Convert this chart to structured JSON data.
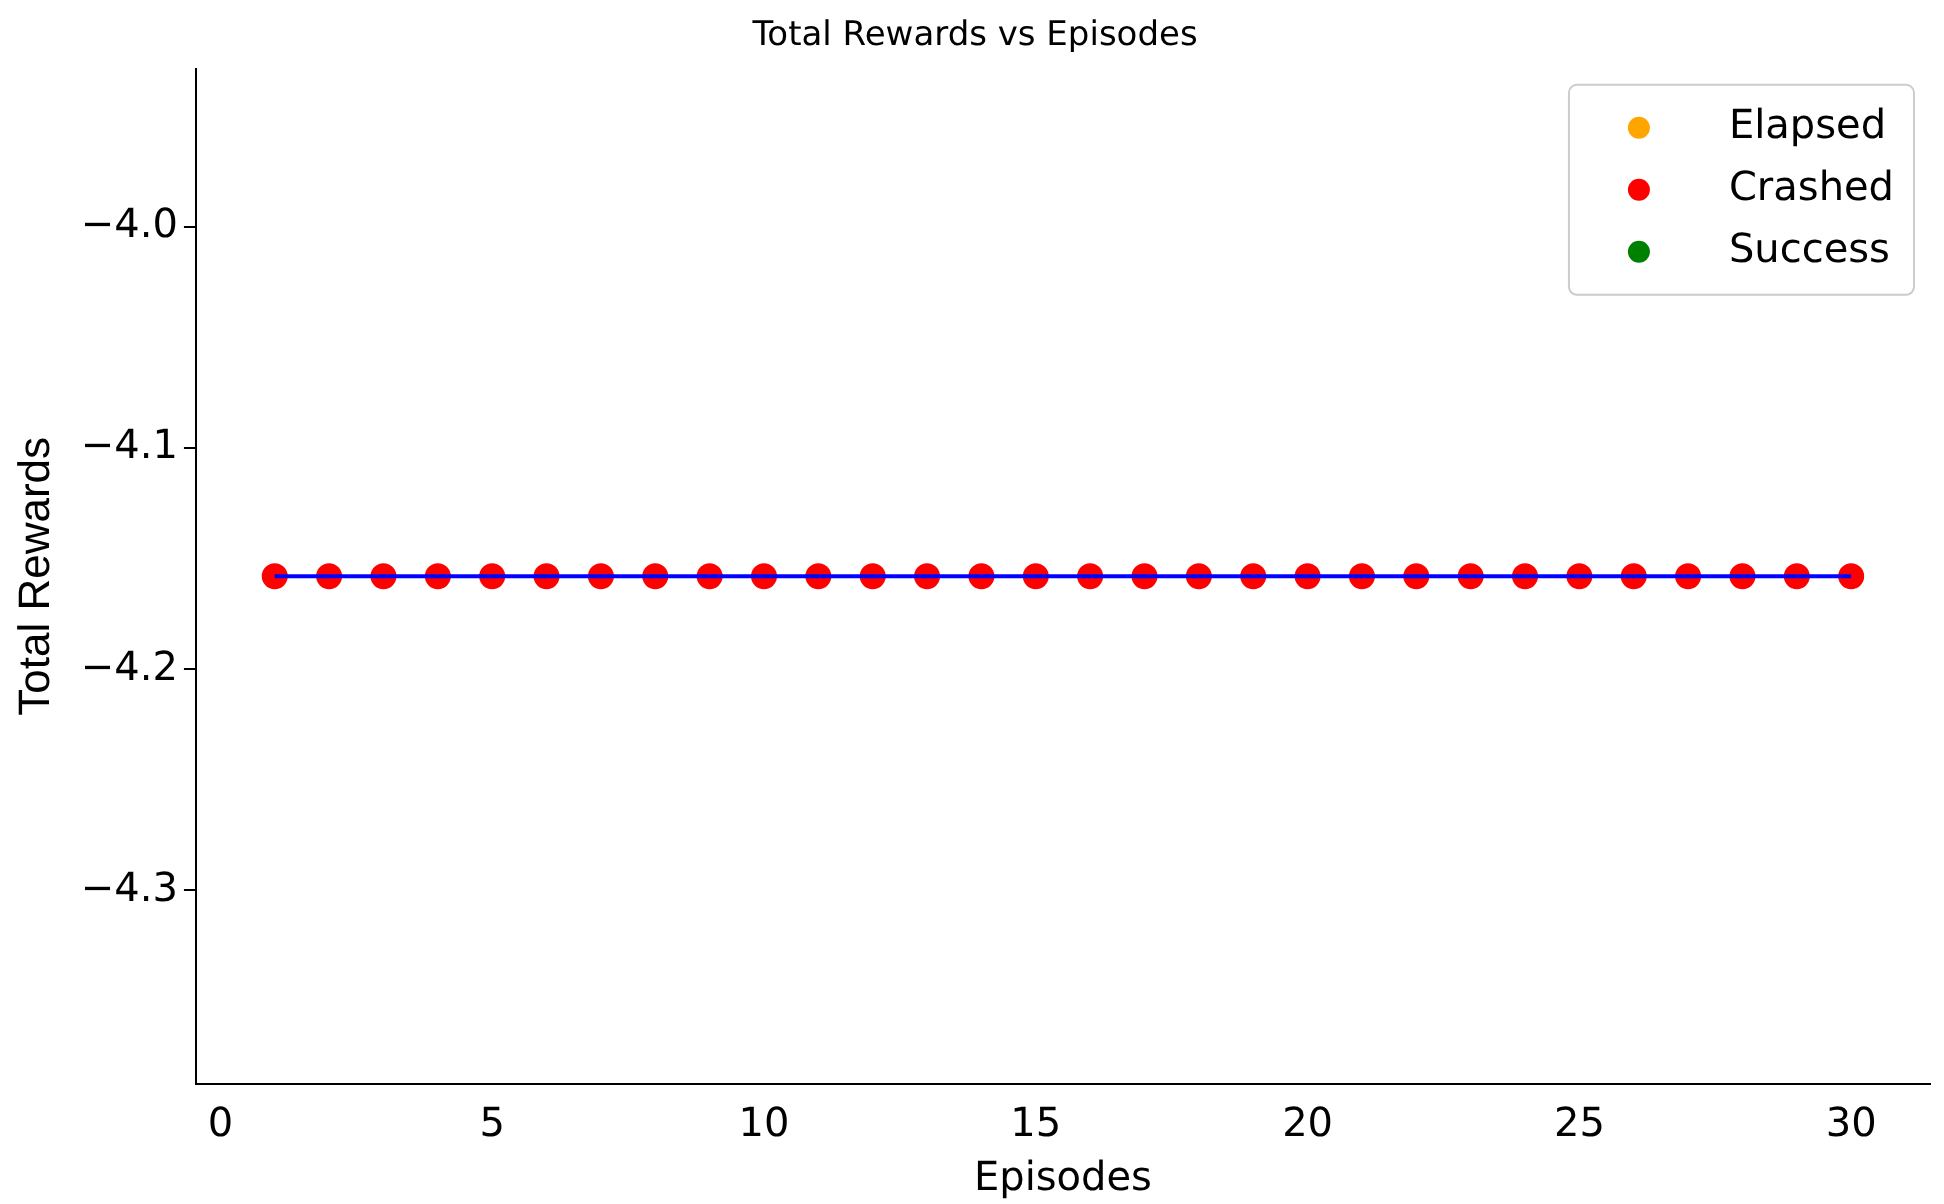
{
  "chart_data": {
    "type": "scatter",
    "title": "Total Rewards vs Episodes",
    "xlabel": "Episodes",
    "ylabel": "Total Rewards",
    "x": [
      1,
      2,
      3,
      4,
      5,
      6,
      7,
      8,
      9,
      10,
      11,
      12,
      13,
      14,
      15,
      16,
      17,
      18,
      19,
      20,
      21,
      22,
      23,
      24,
      25,
      26,
      27,
      28,
      29,
      30
    ],
    "series": [
      {
        "name": "Elapsed",
        "color": "#ffa500",
        "values": [
          null,
          null,
          null,
          null,
          null,
          null,
          null,
          null,
          null,
          null,
          null,
          null,
          null,
          null,
          null,
          null,
          null,
          null,
          null,
          null,
          null,
          null,
          null,
          null,
          null,
          null,
          null,
          null,
          null,
          null
        ]
      },
      {
        "name": "Crashed",
        "color": "#ff0000",
        "values": [
          -4.158,
          -4.158,
          -4.158,
          -4.158,
          -4.158,
          -4.158,
          -4.158,
          -4.158,
          -4.158,
          -4.158,
          -4.158,
          -4.158,
          -4.158,
          -4.158,
          -4.158,
          -4.158,
          -4.158,
          -4.158,
          -4.158,
          -4.158,
          -4.158,
          -4.158,
          -4.158,
          -4.158,
          -4.158,
          -4.158,
          -4.158,
          -4.158,
          -4.158,
          -4.158
        ]
      },
      {
        "name": "Success",
        "color": "#008000",
        "values": [
          null,
          null,
          null,
          null,
          null,
          null,
          null,
          null,
          null,
          null,
          null,
          null,
          null,
          null,
          null,
          null,
          null,
          null,
          null,
          null,
          null,
          null,
          null,
          null,
          null,
          null,
          null,
          null,
          null,
          null
        ]
      },
      {
        "type": "line",
        "marker": "none",
        "color": "#0000ff",
        "values": [
          -4.158,
          -4.158,
          -4.158,
          -4.158,
          -4.158,
          -4.158,
          -4.158,
          -4.158,
          -4.158,
          -4.158,
          -4.158,
          -4.158,
          -4.158,
          -4.158,
          -4.158,
          -4.158,
          -4.158,
          -4.158,
          -4.158,
          -4.158,
          -4.158,
          -4.158,
          -4.158,
          -4.158,
          -4.158,
          -4.158,
          -4.158,
          -4.158,
          -4.158,
          -4.158
        ]
      }
    ],
    "xlim": [
      -0.45,
      31.45
    ],
    "xticks": [
      0,
      5,
      10,
      15,
      20,
      25,
      30
    ],
    "ylim": [
      -4.3875,
      -3.9286
    ],
    "yticks": [
      {
        "value": -4.3,
        "label": "−4.3"
      },
      {
        "value": -4.2,
        "label": "−4.2"
      },
      {
        "value": -4.1,
        "label": "−4.1"
      },
      {
        "value": -4.0,
        "label": "−4.0"
      }
    ],
    "marker": "circle",
    "legend": "top right",
    "grid": false
  }
}
